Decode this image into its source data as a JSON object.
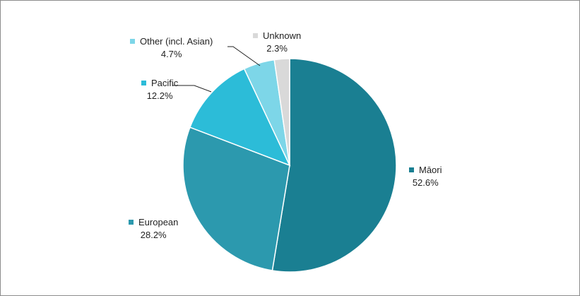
{
  "chart_data": {
    "type": "pie",
    "title": "",
    "slices": [
      {
        "name": "Māori",
        "value": 52.6,
        "label": "52.6%",
        "color": "#1a7f92"
      },
      {
        "name": "European",
        "value": 28.2,
        "label": "28.2%",
        "color": "#2c99ae"
      },
      {
        "name": "Pacific",
        "value": 12.2,
        "label": "12.2%",
        "color": "#2cbcd8"
      },
      {
        "name": "Other (incl. Asian)",
        "value": 4.7,
        "label": "4.7%",
        "color": "#7dd6e8"
      },
      {
        "name": "Unknown",
        "value": 2.3,
        "label": "2.3%",
        "color": "#d9d9d9"
      }
    ],
    "start_angle": "12 o'clock",
    "direction": "clockwise",
    "legend": "data labels beside slices"
  }
}
